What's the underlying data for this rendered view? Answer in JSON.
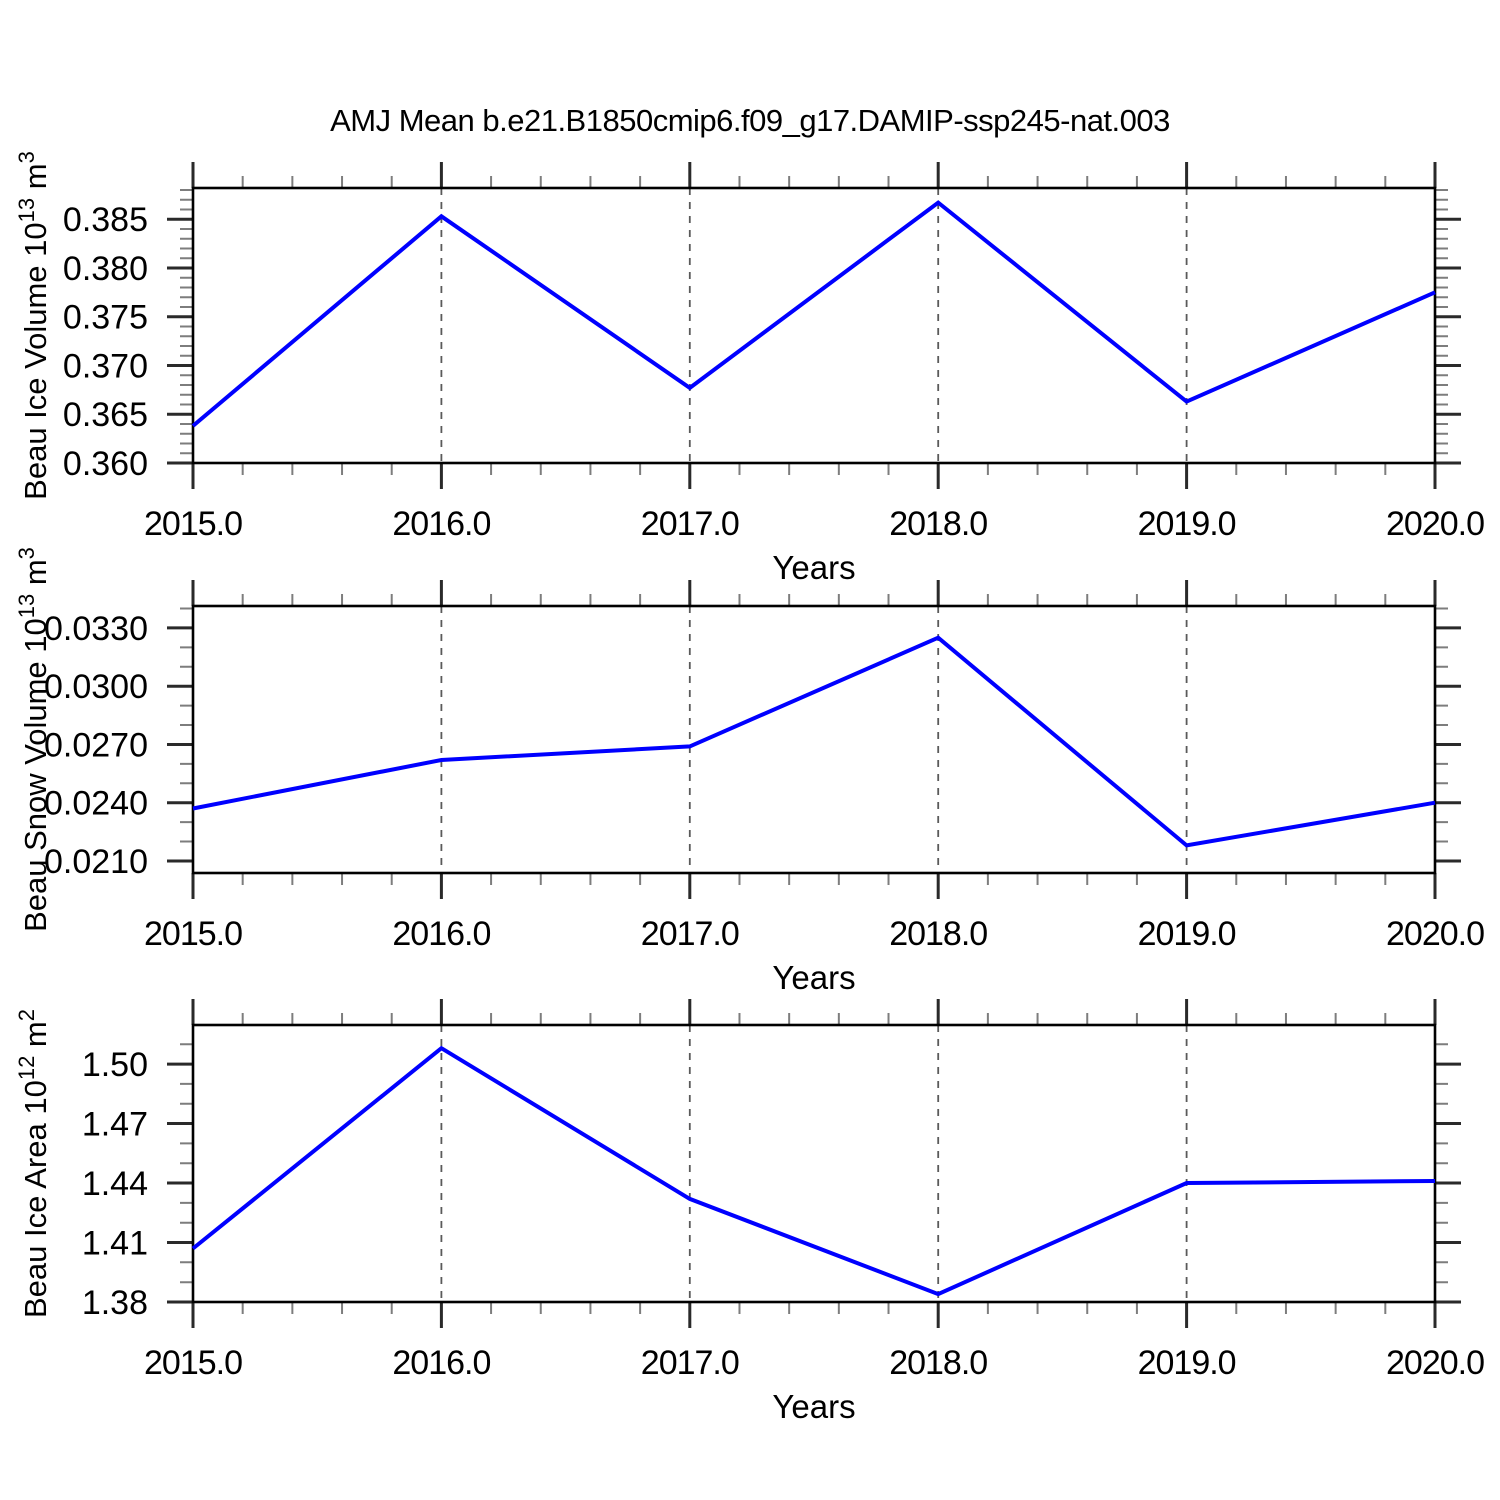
{
  "title": "AMJ Mean b.e21.B1850cmip6.f09_g17.DAMIP-ssp245-nat.003",
  "colors": {
    "line": "#0000ff",
    "grid": "#5a5a5a",
    "axis": "#000000",
    "tick_major": "#2a2a2a",
    "tick_minor": "#7d7d7d",
    "text": "#000000"
  },
  "x_axis": {
    "label": "Years",
    "min": 2015,
    "max": 2020,
    "major_ticks": [
      2015,
      2016,
      2017,
      2018,
      2019,
      2020
    ],
    "major_tick_labels": [
      "2015.0",
      "2016.0",
      "2017.0",
      "2018.0",
      "2019.0",
      "2020.0"
    ],
    "minor_step": 0.2,
    "gridlines": [
      2016,
      2017,
      2018,
      2019
    ]
  },
  "chart_data": [
    {
      "type": "line",
      "name": "beau-ice-volume",
      "title": "",
      "ylabel": "Beau Ice Volume 10^13 m^3",
      "ylabel_segments": [
        {
          "t": "Beau Ice Volume 10"
        },
        {
          "t": "13",
          "sup": true
        },
        {
          "t": " m"
        },
        {
          "t": "3",
          "sup": true
        }
      ],
      "xlabel": "Years",
      "x": [
        2015,
        2016,
        2017,
        2018,
        2019,
        2020
      ],
      "values": [
        0.3638,
        0.3853,
        0.3677,
        0.3867,
        0.3663,
        0.3775
      ],
      "ylim": [
        0.36,
        0.3882
      ],
      "y_major_ticks": [
        0.36,
        0.365,
        0.37,
        0.375,
        0.38,
        0.385
      ],
      "y_major_tick_labels": [
        "0.360",
        "0.365",
        "0.370",
        "0.375",
        "0.380",
        "0.385"
      ],
      "y_minor_step": 0.001,
      "grid": "vertical-dashed"
    },
    {
      "type": "line",
      "name": "beau-snow-volume",
      "title": "",
      "ylabel": "Beau Snow Volume 10^13 m^3",
      "ylabel_segments": [
        {
          "t": "Beau Snow Volume 10"
        },
        {
          "t": "13",
          "sup": true
        },
        {
          "t": " m"
        },
        {
          "t": "3",
          "sup": true
        }
      ],
      "xlabel": "Years",
      "x": [
        2015,
        2016,
        2017,
        2018,
        2019,
        2020
      ],
      "values": [
        0.0237,
        0.0262,
        0.0269,
        0.0325,
        0.0218,
        0.024
      ],
      "ylim": [
        0.02038,
        0.03413
      ],
      "y_major_ticks": [
        0.021,
        0.024,
        0.027,
        0.03,
        0.033
      ],
      "y_major_tick_labels": [
        "0.0210",
        "0.0240",
        "0.0270",
        "0.0300",
        "0.0330"
      ],
      "y_minor_step": 0.001,
      "grid": "vertical-dashed"
    },
    {
      "type": "line",
      "name": "beau-ice-area",
      "title": "",
      "ylabel": "Beau Ice Area 10^12 m^2",
      "ylabel_segments": [
        {
          "t": "Beau Ice Area 10"
        },
        {
          "t": "12",
          "sup": true
        },
        {
          "t": " m"
        },
        {
          "t": "2",
          "sup": true
        }
      ],
      "xlabel": "Years",
      "x": [
        2015,
        2016,
        2017,
        2018,
        2019,
        2020
      ],
      "values": [
        1.407,
        1.508,
        1.432,
        1.384,
        1.44,
        1.441
      ],
      "ylim": [
        1.38,
        1.5197
      ],
      "y_major_ticks": [
        1.38,
        1.41,
        1.44,
        1.47,
        1.5
      ],
      "y_major_tick_labels": [
        "1.38",
        "1.41",
        "1.44",
        "1.47",
        "1.50"
      ],
      "y_minor_step": 0.01,
      "grid": "vertical-dashed"
    }
  ]
}
